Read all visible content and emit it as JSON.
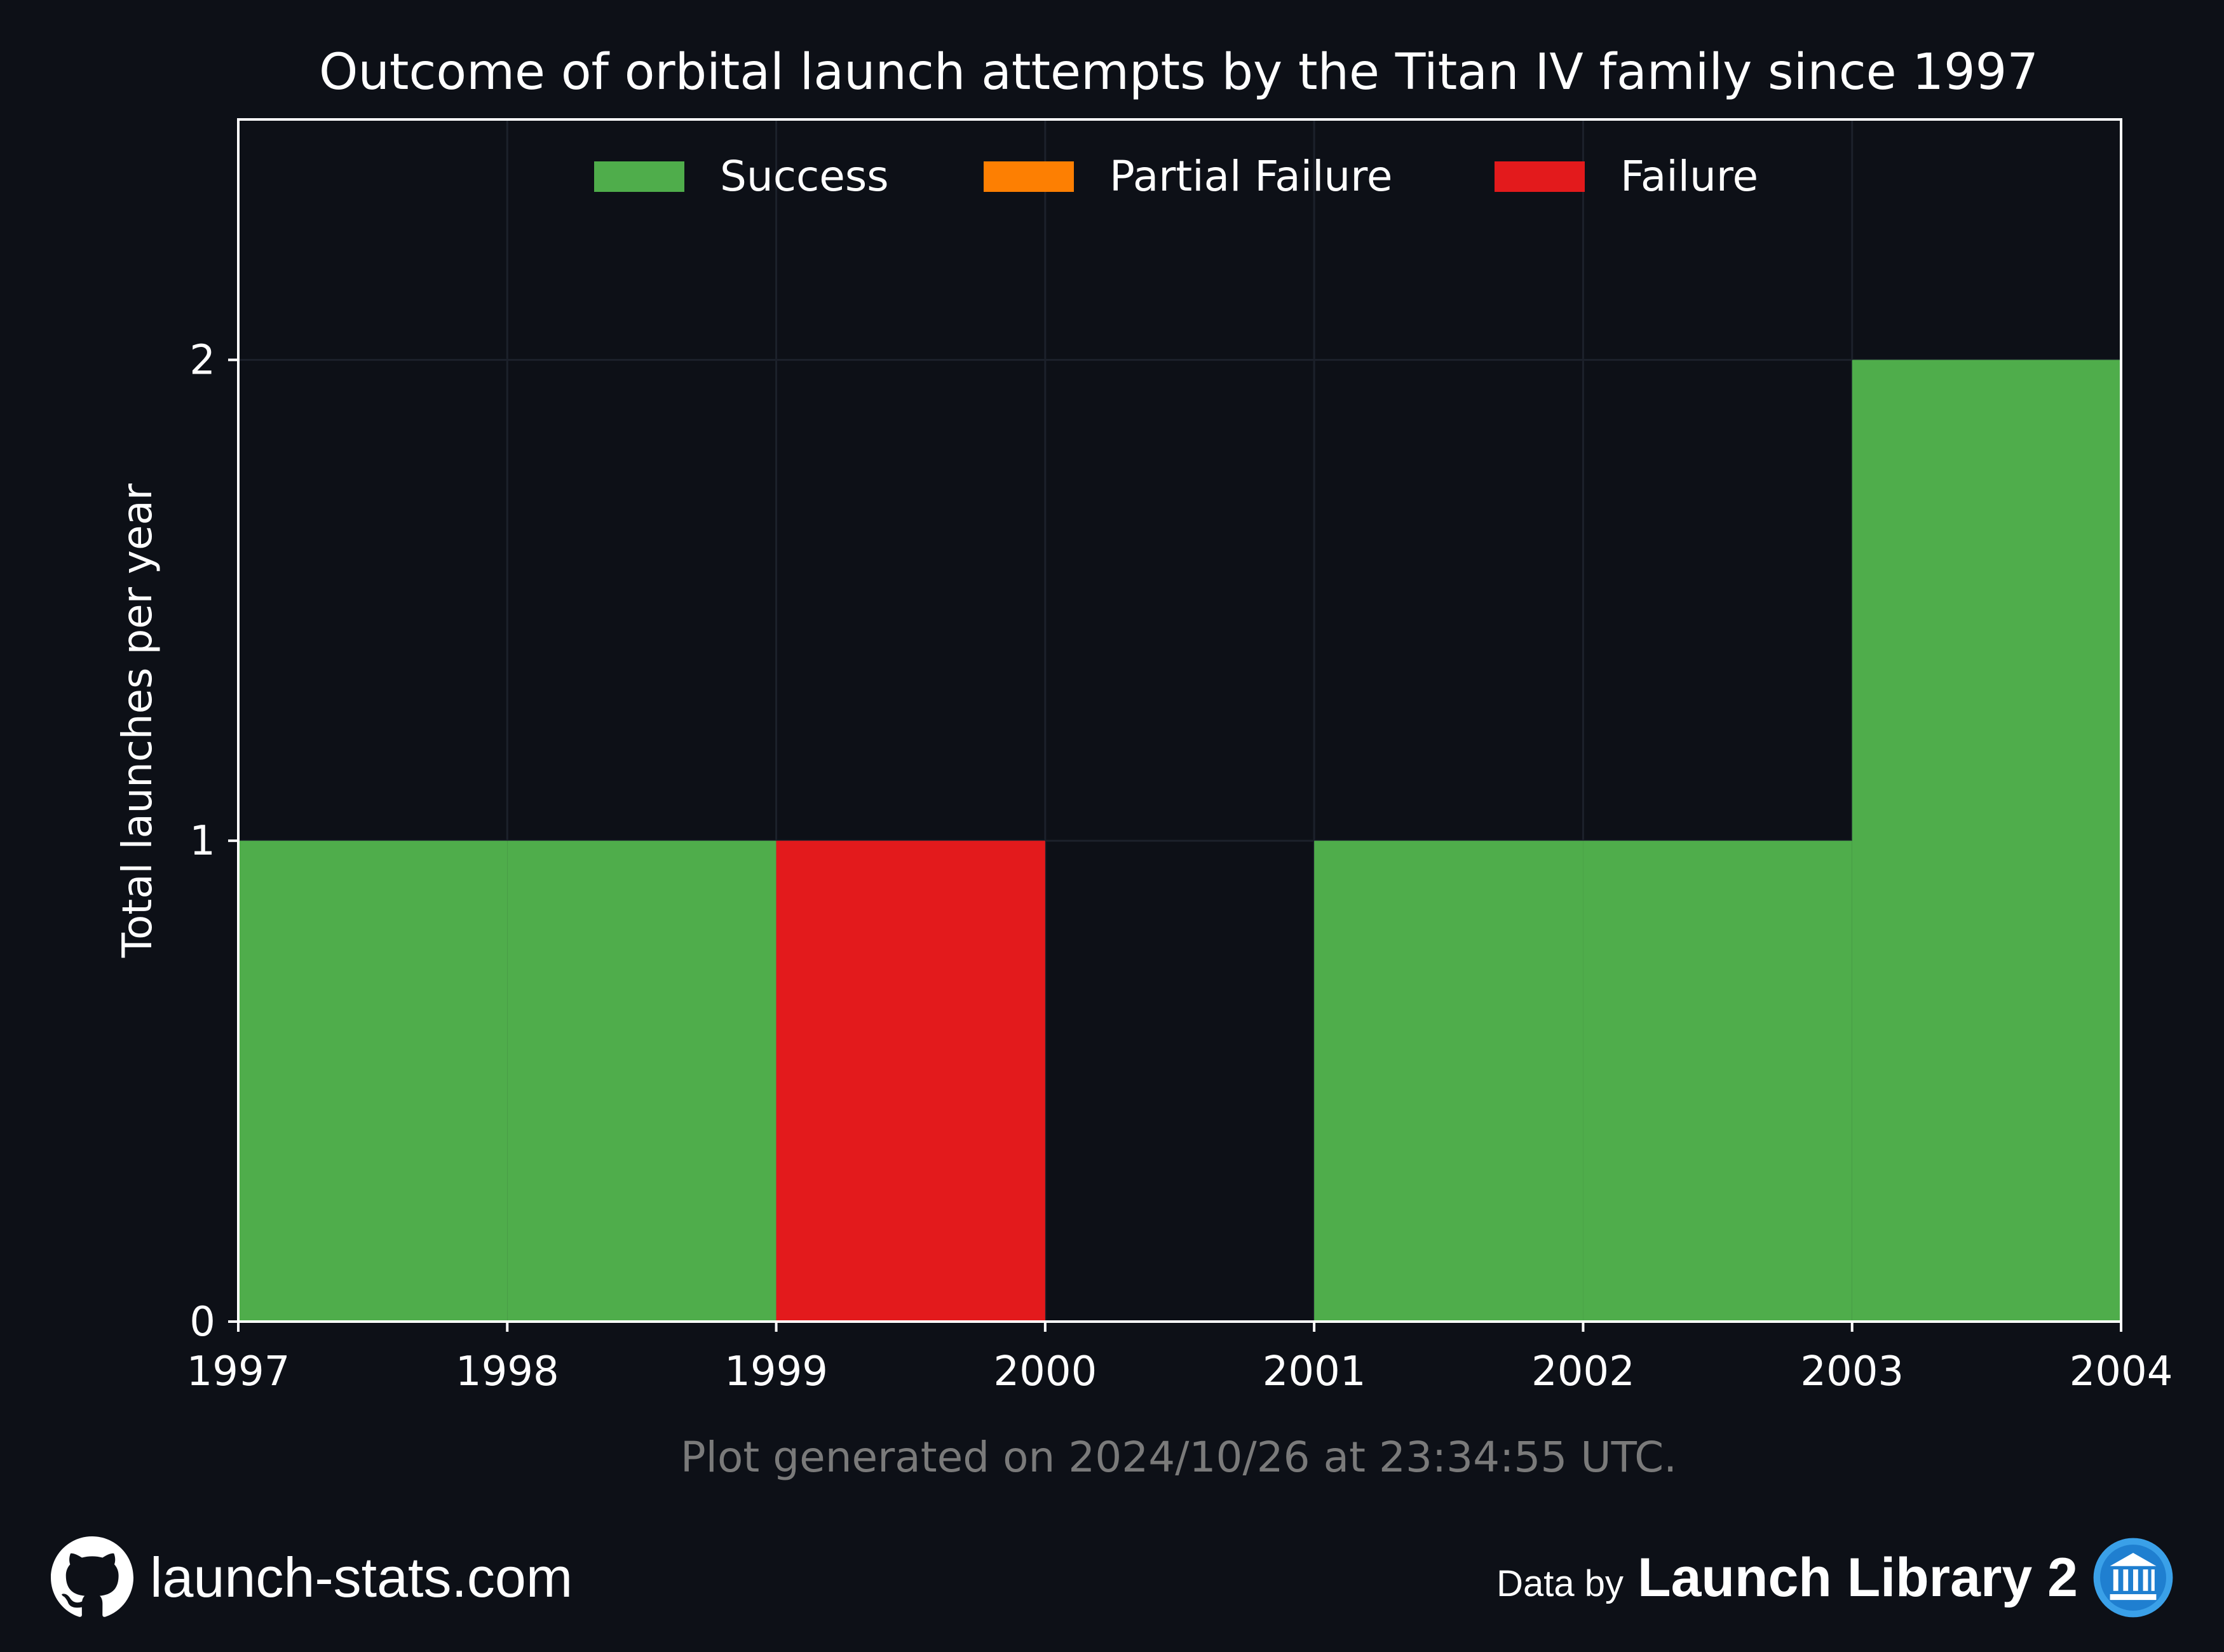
{
  "chart_data": {
    "type": "bar",
    "title": "Outcome of orbital launch attempts by the Titan IV family since 1997",
    "xlabel": "",
    "ylabel": "Total launches per year",
    "x_ticks": [
      "1997",
      "1998",
      "1999",
      "2000",
      "2001",
      "2002",
      "2003",
      "2004"
    ],
    "y_ticks": [
      "0",
      "1",
      "2"
    ],
    "xlim": [
      1997,
      2004
    ],
    "ylim": [
      0,
      2.5
    ],
    "grid": true,
    "legend_position": "top-center",
    "categories": [
      1997,
      1998,
      1999,
      2000,
      2001,
      2002,
      2003
    ],
    "series": [
      {
        "name": "Success",
        "color": "#4fad4b",
        "values": [
          1,
          1,
          0,
          0,
          1,
          1,
          2
        ]
      },
      {
        "name": "Partial Failure",
        "color": "#fd7f02",
        "values": [
          0,
          0,
          0,
          0,
          0,
          0,
          0
        ]
      },
      {
        "name": "Failure",
        "color": "#e31a1c",
        "values": [
          0,
          0,
          1,
          0,
          0,
          0,
          0
        ]
      }
    ]
  },
  "note": "Plot generated on 2024/10/26 at 23:34:55 UTC.",
  "footer": {
    "site": "launch-stats.com",
    "site_icon": "github-icon",
    "data_by": "Data by",
    "library": "Launch Library 2",
    "library_icon": "launch-library-logo"
  }
}
